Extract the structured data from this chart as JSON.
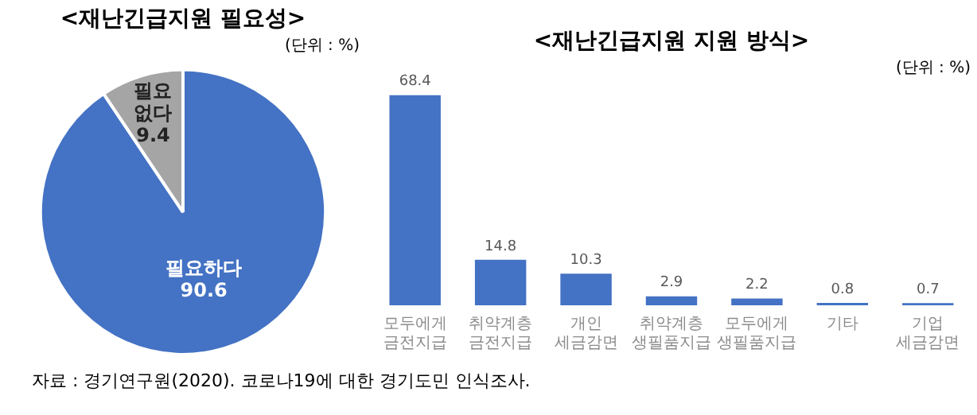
{
  "chart_data": [
    {
      "type": "pie",
      "title": "<재난긴급지원 필요성>",
      "subtitle": "(단위 : %)",
      "categories": [
        "필요하다",
        "필요 없다"
      ],
      "values": [
        90.6,
        9.4
      ],
      "colors": [
        "#4472c4",
        "#a5a5a5"
      ],
      "data_labels": true,
      "legend": false,
      "annotations": [
        "자료 : 경기연구원(2020). 코로나19에 대한 경기도민 인식조사."
      ]
    },
    {
      "type": "bar",
      "title": "<재난긴급지원 지원 방식>",
      "subtitle": "(단위 : %)",
      "categories": [
        "모두에게 금전지급",
        "취약계층 금전지급",
        "개인 세금감면",
        "취약계층 생필품지급",
        "모두에게 생필품지급",
        "기타",
        "기업 세금감면"
      ],
      "values": [
        68.4,
        14.8,
        10.3,
        2.9,
        2.2,
        0.8,
        0.7
      ],
      "color": "#4472c4",
      "data_labels": true,
      "legend": false,
      "grid": false,
      "tick_labels": "x"
    }
  ]
}
